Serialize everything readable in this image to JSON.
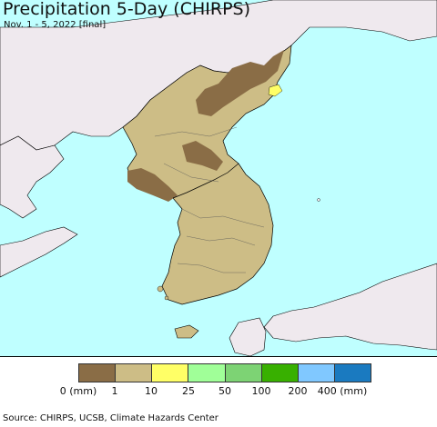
{
  "header": {
    "title": "Precipitation 5-Day (CHIRPS)",
    "subtitle": "Nov. 1 - 5, 2022 [final]"
  },
  "map": {
    "ocean_color": "#bfffff",
    "foreign_land_color": "#efe9ee",
    "border_color": "#000000"
  },
  "legend": {
    "colors": [
      "#8a6d46",
      "#cdbd86",
      "#ffff66",
      "#a0ff98",
      "#7dd374",
      "#38b000",
      "#80c8ff",
      "#1a7ac0"
    ],
    "tick_labels": [
      "0 (mm)",
      "1",
      "10",
      "25",
      "50",
      "100",
      "200",
      "400 (mm)"
    ]
  },
  "footer": {
    "source": "Source: CHIRPS, UCSB, Climate Hazards Center"
  }
}
